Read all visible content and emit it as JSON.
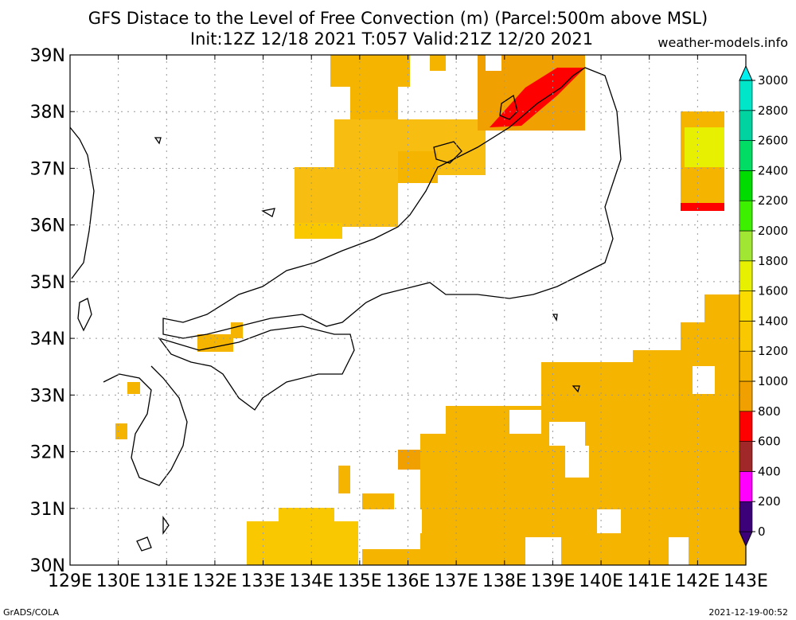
{
  "title_line1": "GFS Distace to the Level of Free Convection (m) (Parcel:500m above MSL)",
  "title_line2": "Init:12Z 12/18 2021 T:057 Valid:21Z 12/20 2021",
  "site": "weather-models.info",
  "footer_left": "GrADS/COLA",
  "footer_right": "2021-12-19-00:52",
  "map": {
    "lon_range": [
      129,
      143
    ],
    "lat_range": [
      30,
      39
    ],
    "lon_ticks": [
      "129E",
      "130E",
      "131E",
      "132E",
      "133E",
      "134E",
      "135E",
      "136E",
      "137E",
      "138E",
      "139E",
      "140E",
      "141E",
      "142E",
      "143E"
    ],
    "lat_ticks": [
      "30N",
      "31N",
      "32N",
      "33N",
      "34N",
      "35N",
      "36N",
      "37N",
      "38N",
      "39N"
    ],
    "grid": "dotted"
  },
  "colorbar": {
    "labels": [
      "0",
      "200",
      "400",
      "600",
      "800",
      "1000",
      "1200",
      "1400",
      "1600",
      "1800",
      "2000",
      "2200",
      "2400",
      "2600",
      "2800",
      "3000"
    ],
    "colors": [
      "#3c0078",
      "#ff00ff",
      "#a02828",
      "#ff0000",
      "#f0a000",
      "#f5b400",
      "#fac800",
      "#fadc00",
      "#e6f000",
      "#a0e632",
      "#3cf000",
      "#00dc00",
      "#00dc64",
      "#00d2a0",
      "#00e6c8",
      "#00f0f0"
    ]
  }
}
